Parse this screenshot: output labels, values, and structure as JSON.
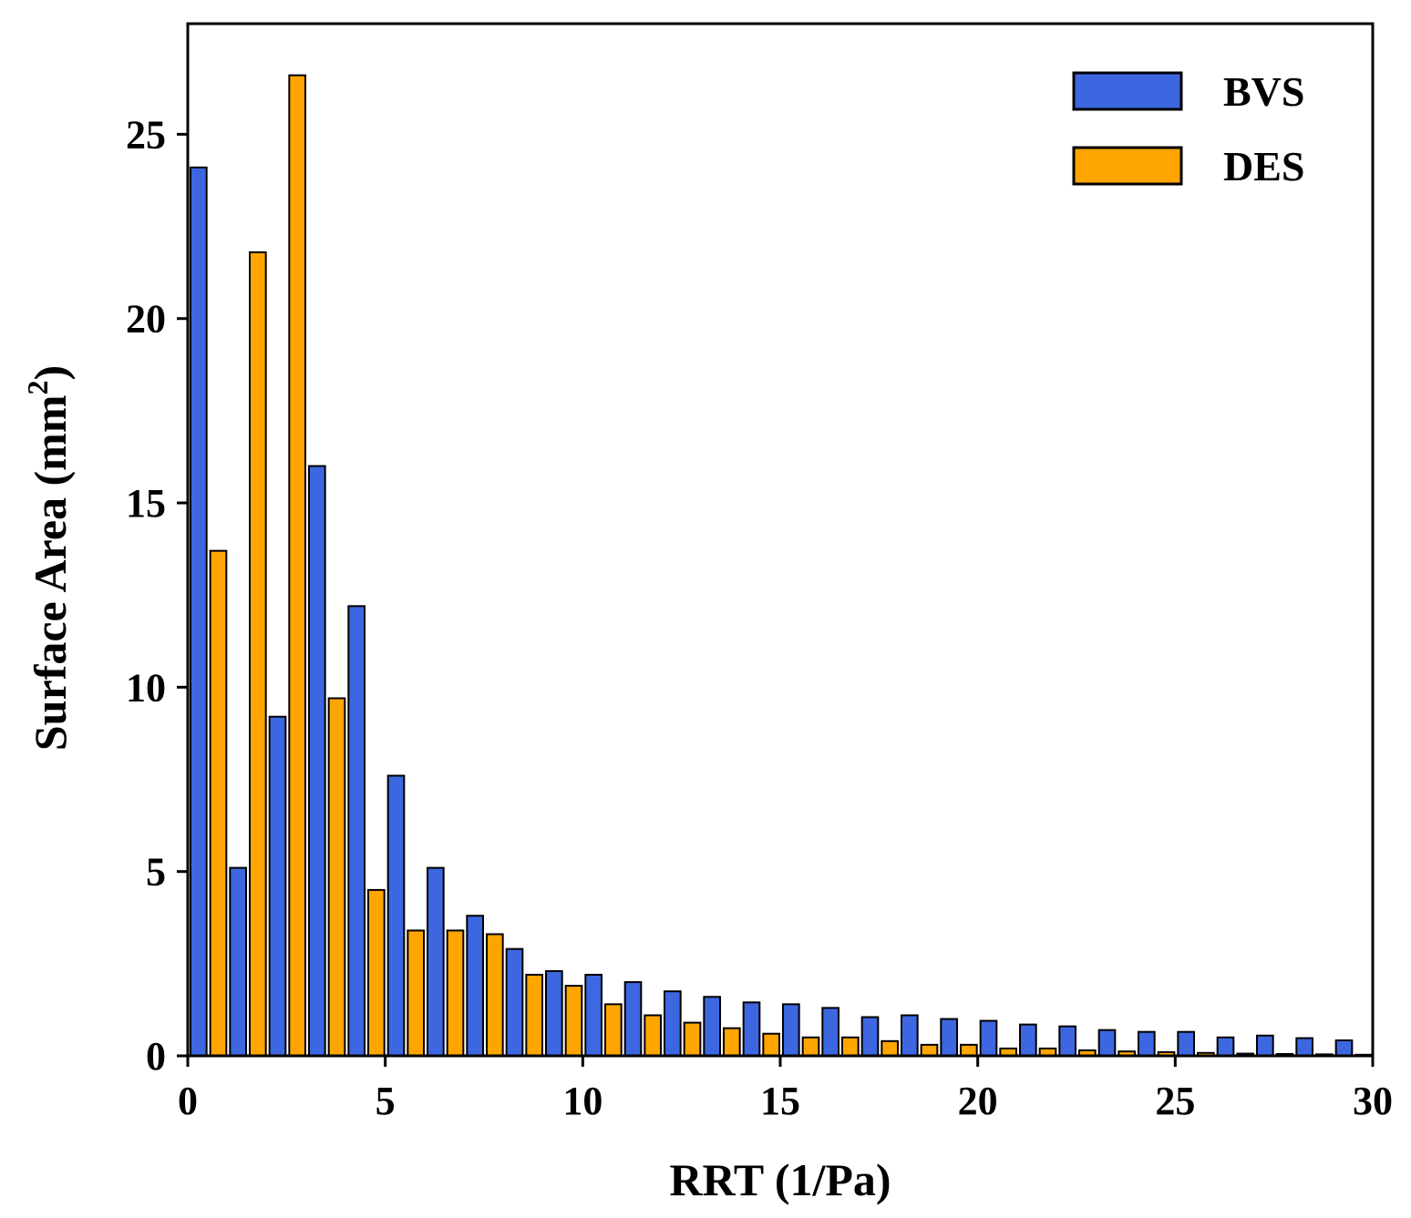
{
  "chart_data": {
    "type": "bar",
    "xlabel": "RRT (1/Pa)",
    "ylabel": "Surface Area (mm",
    "ylabel_sup": "2",
    "ylabel_close": ")",
    "xlim": [
      0,
      30
    ],
    "ylim": [
      0,
      28
    ],
    "x_ticks": [
      "0",
      "5",
      "10",
      "15",
      "20",
      "25",
      "30"
    ],
    "y_ticks": [
      "0",
      "5",
      "10",
      "15",
      "20",
      "25"
    ],
    "bin_width": 1,
    "bin_starts": [
      0,
      1,
      2,
      3,
      4,
      5,
      6,
      7,
      8,
      9,
      10,
      11,
      12,
      13,
      14,
      15,
      16,
      17,
      18,
      19,
      20,
      21,
      22,
      23,
      24,
      25,
      26,
      27,
      28,
      29
    ],
    "legend_position": "top-right",
    "grid": false,
    "series": [
      {
        "name": "BVS",
        "color": "#3d67e0",
        "values": [
          24.1,
          5.1,
          9.2,
          16.0,
          12.2,
          7.6,
          5.1,
          3.8,
          2.9,
          2.3,
          2.2,
          2.0,
          1.75,
          1.6,
          1.45,
          1.4,
          1.3,
          1.05,
          1.1,
          1.0,
          0.95,
          0.85,
          0.8,
          0.7,
          0.65,
          0.65,
          0.5,
          0.55,
          0.48,
          0.42
        ]
      },
      {
        "name": "DES",
        "color": "#ffa500",
        "values": [
          13.7,
          21.8,
          26.6,
          9.7,
          4.5,
          3.4,
          3.4,
          3.3,
          2.2,
          1.9,
          1.4,
          1.1,
          0.9,
          0.75,
          0.6,
          0.5,
          0.5,
          0.4,
          0.3,
          0.3,
          0.2,
          0.2,
          0.15,
          0.12,
          0.1,
          0.08,
          0.06,
          0.05,
          0.04,
          0.03
        ]
      }
    ]
  }
}
